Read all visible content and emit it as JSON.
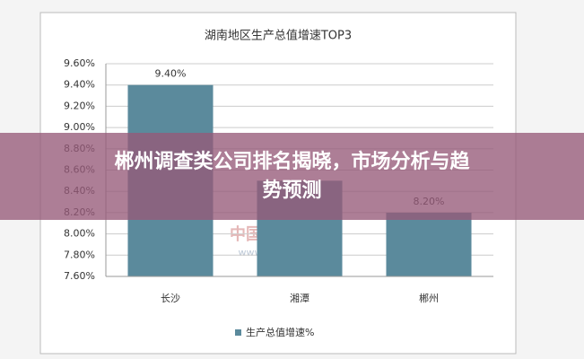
{
  "chart_data": {
    "type": "bar",
    "title": "湖南地区生产总值增速TOP3",
    "categories": [
      "长沙",
      "湘潭",
      "郴州"
    ],
    "series": [
      {
        "name": "生产总值增速%",
        "color": "#5b8a9c",
        "values": [
          9.4,
          8.5,
          8.2
        ],
        "value_labels": [
          "9.40%",
          null,
          "8.20%"
        ]
      }
    ],
    "ylim": [
      7.6,
      9.6
    ],
    "yticks": [
      {
        "value": 7.6,
        "label": "7.60%"
      },
      {
        "value": 7.8,
        "label": "7.80%"
      },
      {
        "value": 8.0,
        "label": "8.00%"
      },
      {
        "value": 8.2,
        "label": "8.20%"
      },
      {
        "value": 8.4,
        "label": "8.40%"
      },
      {
        "value": 8.6,
        "label": "8.60%"
      },
      {
        "value": 8.8,
        "label": "8.80%"
      },
      {
        "value": 9.0,
        "label": "9.00%"
      },
      {
        "value": 9.2,
        "label": "9.20%"
      },
      {
        "value": 9.4,
        "label": "9.40%"
      },
      {
        "value": 9.6,
        "label": "9.60%"
      }
    ],
    "grid": true,
    "watermark": [
      "中国产业信息",
      "www.chyxx.com"
    ]
  },
  "headline": [
    "郴州调查类公司排名揭晓，市场分析与趋",
    "势预测"
  ]
}
